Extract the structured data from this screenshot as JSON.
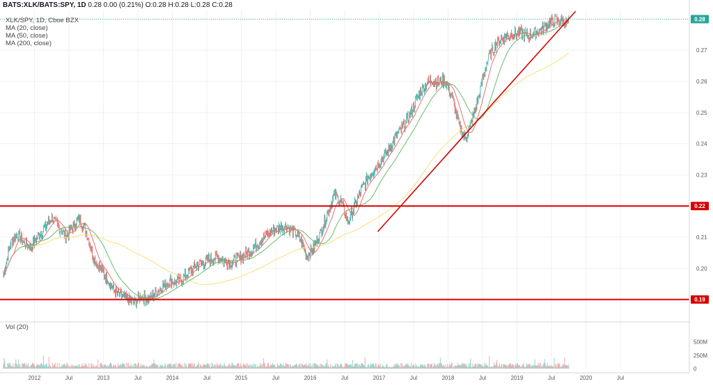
{
  "header": {
    "symbol": "BATS:XLK/BATS:SPY, 1D",
    "values": "0.28 0.00 (0.21%) O:0.28 H:0.28 L:0.28 C:0.28"
  },
  "legend": {
    "main": "XLK/SPY, 1D, Cboe BZX",
    "ma20": "MA (20, close)",
    "ma50": "MA (50, close)",
    "ma200": "MA (200, close)",
    "vol": "Vol (20)"
  },
  "colors": {
    "up": "#26a69a",
    "down": "#ef5350",
    "ma20": "#e57373",
    "ma50": "#66bb6a",
    "ma200": "#f5e07a",
    "annotation": "#d50000",
    "last_price": "#26a69a",
    "level": "#d50000"
  },
  "chart_data": {
    "type": "line",
    "title": "XLK/SPY, 1D, Cboe BZX",
    "price_axis": {
      "ylim": [
        0.183,
        0.283
      ],
      "ticks": [
        "0.28",
        "0.27",
        "0.26",
        "0.25",
        "0.24",
        "0.23",
        "0.22",
        "0.21",
        "0.20",
        "0.19"
      ]
    },
    "volume_axis": {
      "ylim": [
        0,
        650
      ],
      "unit": "M",
      "ticks": [
        "500M",
        "250M",
        "0"
      ]
    },
    "time_axis": {
      "xlim": [
        2011.5,
        2021.5
      ],
      "ticks": [
        {
          "t": 2012.0,
          "label": "2012"
        },
        {
          "t": 2012.5,
          "label": "Jul"
        },
        {
          "t": 2013.0,
          "label": "2013"
        },
        {
          "t": 2013.5,
          "label": "Jul"
        },
        {
          "t": 2014.0,
          "label": "2014"
        },
        {
          "t": 2014.5,
          "label": "Jul"
        },
        {
          "t": 2015.0,
          "label": "2015"
        },
        {
          "t": 2015.5,
          "label": "Jul"
        },
        {
          "t": 2016.0,
          "label": "2016"
        },
        {
          "t": 2016.5,
          "label": "Jul"
        },
        {
          "t": 2017.0,
          "label": "2017"
        },
        {
          "t": 2017.5,
          "label": "Jul"
        },
        {
          "t": 2018.0,
          "label": "2018"
        },
        {
          "t": 2018.5,
          "label": "Jul"
        },
        {
          "t": 2019.0,
          "label": "2019"
        },
        {
          "t": 2019.5,
          "label": "Jul"
        },
        {
          "t": 2020.0,
          "label": "2020"
        },
        {
          "t": 2020.5,
          "label": "Jul"
        }
      ]
    },
    "series": [
      {
        "name": "XLK/SPY",
        "x": [
          2011.55,
          2011.65,
          2011.75,
          2011.85,
          2011.95,
          2012.05,
          2012.15,
          2012.25,
          2012.35,
          2012.45,
          2012.55,
          2012.65,
          2012.75,
          2012.85,
          2012.95,
          2013.05,
          2013.15,
          2013.25,
          2013.35,
          2013.45,
          2013.55,
          2013.65,
          2013.75,
          2013.85,
          2013.95,
          2014.05,
          2014.15,
          2014.25,
          2014.35,
          2014.45,
          2014.55,
          2014.65,
          2014.75,
          2014.85,
          2014.95,
          2015.05,
          2015.15,
          2015.25,
          2015.35,
          2015.45,
          2015.55,
          2015.65,
          2015.75,
          2015.85,
          2015.95,
          2016.05,
          2016.15,
          2016.25,
          2016.35,
          2016.45,
          2016.55,
          2016.65,
          2016.75,
          2016.85,
          2016.95,
          2017.05,
          2017.15,
          2017.25,
          2017.35,
          2017.45,
          2017.55,
          2017.65,
          2017.75,
          2017.85,
          2017.95,
          2018.05,
          2018.15,
          2018.25,
          2018.35,
          2018.45,
          2018.55,
          2018.65,
          2018.75,
          2018.85,
          2018.95,
          2019.05,
          2019.15,
          2019.25,
          2019.35,
          2019.45,
          2019.55,
          2019.65,
          2019.75
        ],
        "values": [
          0.198,
          0.208,
          0.211,
          0.208,
          0.207,
          0.21,
          0.213,
          0.2165,
          0.213,
          0.2105,
          0.213,
          0.216,
          0.212,
          0.204,
          0.2,
          0.197,
          0.193,
          0.191,
          0.19,
          0.189,
          0.191,
          0.19,
          0.192,
          0.194,
          0.196,
          0.1955,
          0.1965,
          0.199,
          0.201,
          0.202,
          0.203,
          0.2035,
          0.2025,
          0.202,
          0.203,
          0.2045,
          0.206,
          0.2085,
          0.2105,
          0.212,
          0.213,
          0.2135,
          0.212,
          0.2095,
          0.204,
          0.2065,
          0.2115,
          0.2175,
          0.2235,
          0.2215,
          0.2145,
          0.2205,
          0.2255,
          0.2295,
          0.2325,
          0.2355,
          0.2385,
          0.2425,
          0.2455,
          0.2495,
          0.2545,
          0.2585,
          0.2605,
          0.2595,
          0.2605,
          0.2555,
          0.2465,
          0.2415,
          0.2475,
          0.2555,
          0.2655,
          0.2705,
          0.2735,
          0.2745,
          0.2755,
          0.2755,
          0.2745,
          0.2755,
          0.2765,
          0.2785,
          0.2795,
          0.2795,
          0.2785
        ]
      }
    ],
    "price_labels": [
      {
        "value": 0.28,
        "label": "0.28"
      },
      {
        "value": 0.22,
        "label": "0.22"
      },
      {
        "value": 0.19,
        "label": "0.19"
      }
    ],
    "horizontal_levels": [
      0.22,
      0.19
    ],
    "trendline": {
      "start": {
        "t": 2016.98,
        "v": 0.2118
      },
      "end": {
        "t": 2019.85,
        "v": 0.2825
      }
    }
  }
}
